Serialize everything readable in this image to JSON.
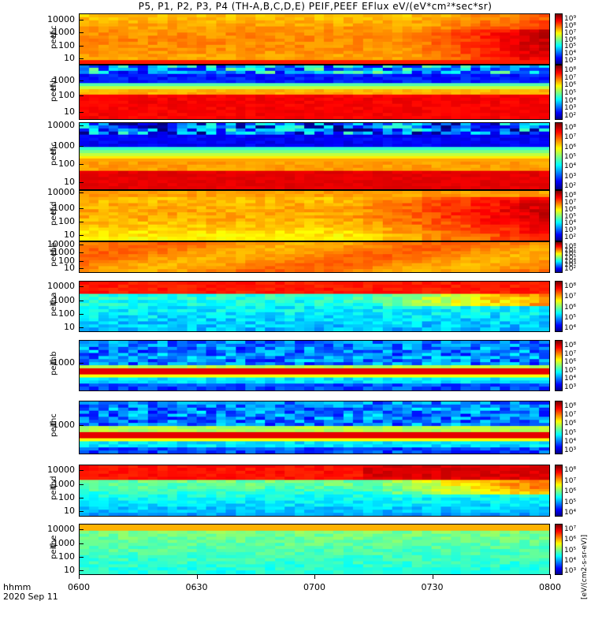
{
  "title": "P5, P1, P2, P3, P4 (TH-A,B,C,D,E) PEIF,PEEF EFlux eV/(eV*cm²*sec*sr)",
  "footer": {
    "time_label": "hhmm",
    "date_label": "2020 Sep 11"
  },
  "colorbar_unit": "[eV/(cm2-s-sr-eV)]",
  "chart_data": {
    "type": "heatmap",
    "x_ticks": [
      "0600",
      "0630",
      "0700",
      "0730",
      "0800"
    ],
    "x_range": [
      "0600",
      "0800"
    ],
    "panels": [
      {
        "probe": "thc",
        "product": "peef",
        "yticks": [
          "10000",
          "1000",
          "100",
          "10"
        ],
        "cbar_ticks": [
          "10⁹",
          "10⁸",
          "10⁷",
          "10⁶",
          "10⁵",
          "10⁴",
          "10³"
        ],
        "pattern": "ion_hot"
      },
      {
        "probe": "thb",
        "product": "peef",
        "yticks": [
          "1000",
          "100",
          "10"
        ],
        "cbar_ticks": [
          "10⁸",
          "10⁷",
          "10⁶",
          "10⁵",
          "10⁴",
          "10³",
          "10²"
        ],
        "pattern": "electron_band"
      },
      {
        "probe": "thc",
        "product": "peef",
        "yticks": [
          "10000",
          "1000",
          "100",
          "10"
        ],
        "cbar_ticks": [
          "10⁸",
          "10⁷",
          "10⁶",
          "10⁵",
          "10⁴",
          "10³",
          "10²"
        ],
        "pattern": "electron_band2"
      },
      {
        "probe": "thd",
        "product": "peef",
        "yticks": [
          "10000",
          "1000",
          "100",
          "10"
        ],
        "cbar_ticks": [
          "10⁸",
          "10⁷",
          "10⁶",
          "10⁵",
          "10⁴",
          "10³",
          "10²"
        ],
        "pattern": "hot_rising"
      },
      {
        "probe": "the",
        "product": "peef",
        "yticks": [
          "10000",
          "1000",
          "100",
          "10"
        ],
        "cbar_ticks": [
          "10⁸",
          "10⁷",
          "10⁶",
          "10⁵",
          "10⁴",
          "10³",
          "10²"
        ],
        "pattern": "warm"
      },
      {
        "probe": "tha",
        "product": "peif",
        "yticks": [
          "10000",
          "1000",
          "100",
          "10"
        ],
        "cbar_ticks": [
          "10⁸",
          "10⁷",
          "10⁶",
          "10⁵",
          "10⁴"
        ],
        "pattern": "ion_low"
      },
      {
        "probe": "thb",
        "product": "peif",
        "yticks": [
          "1000"
        ],
        "cbar_ticks": [
          "10⁸",
          "10⁷",
          "10⁶",
          "10⁵",
          "10⁴",
          "10³"
        ],
        "pattern": "ion_noise"
      },
      {
        "probe": "thc",
        "product": "peif",
        "yticks": [
          "1000"
        ],
        "cbar_ticks": [
          "10⁸",
          "10⁷",
          "10⁶",
          "10⁵",
          "10⁴",
          "10³"
        ],
        "pattern": "ion_noise2"
      },
      {
        "probe": "thd",
        "product": "peif",
        "yticks": [
          "10000",
          "1000",
          "100",
          "10"
        ],
        "cbar_ticks": [
          "10⁸",
          "10⁷",
          "10⁶",
          "10⁵",
          "10⁴"
        ],
        "pattern": "ion_low2"
      },
      {
        "probe": "the",
        "product": "peif",
        "yticks": [
          "10000",
          "1000",
          "100",
          "10"
        ],
        "cbar_ticks": [
          "10⁷",
          "10⁶",
          "10⁵",
          "10⁴",
          "10³"
        ],
        "pattern": "ion_green"
      }
    ]
  }
}
